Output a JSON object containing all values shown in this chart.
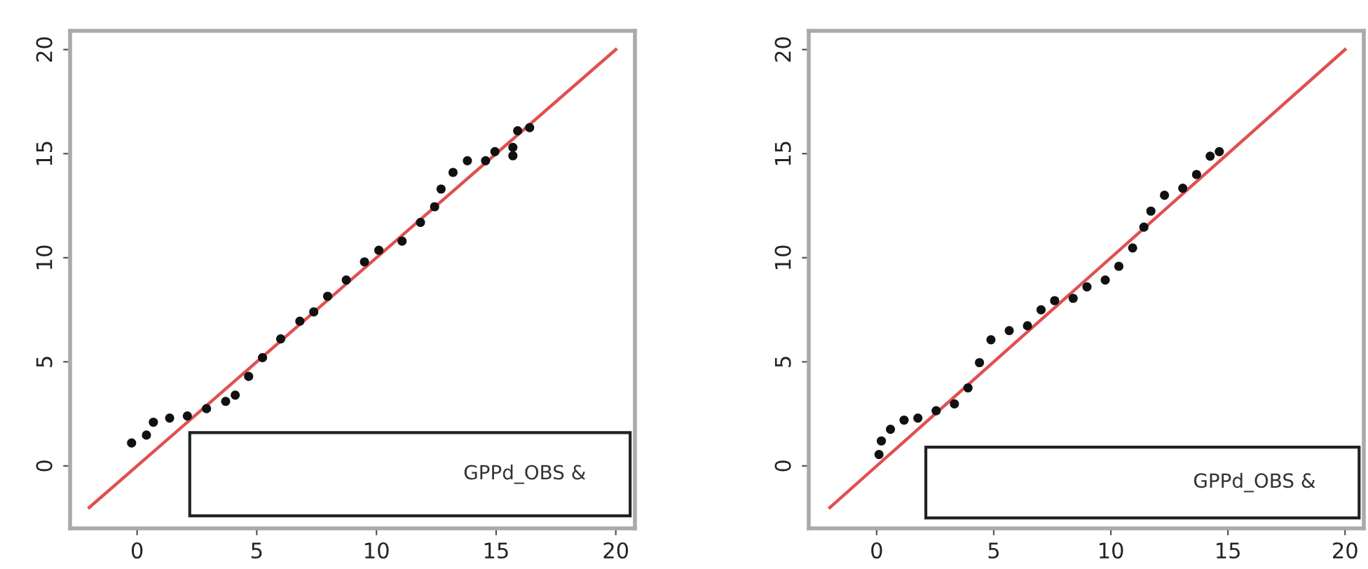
{
  "chart_data": [
    {
      "type": "scatter",
      "xlim": [
        -2.8,
        20.8
      ],
      "ylim": [
        -3,
        20.9
      ],
      "xticks": [
        0,
        5,
        10,
        15,
        20
      ],
      "yticks": [
        0,
        5,
        10,
        15,
        20
      ],
      "grid": false,
      "legend": false,
      "annotations": [
        "GPPd_OBS &"
      ],
      "series": [
        {
          "marker": "circle",
          "color": "#111111",
          "x": [
            -0.23,
            0.39,
            0.68,
            1.36,
            2.1,
            2.9,
            3.7,
            4.1,
            4.66,
            5.24,
            6.0,
            6.8,
            7.38,
            7.96,
            8.74,
            9.5,
            10.1,
            11.07,
            11.84,
            12.43,
            12.7,
            13.2,
            13.8,
            14.56,
            14.95,
            15.7,
            15.7,
            15.9,
            16.4
          ],
          "values": [
            1.1,
            1.48,
            2.1,
            2.3,
            2.4,
            2.75,
            3.1,
            3.4,
            4.3,
            5.2,
            6.1,
            6.95,
            7.4,
            8.15,
            8.93,
            9.8,
            10.36,
            10.8,
            11.7,
            12.45,
            13.3,
            14.1,
            14.66,
            14.66,
            15.1,
            15.3,
            14.9,
            16.1,
            16.25
          ]
        },
        {
          "type": "line",
          "color": "#e05050",
          "x": [
            -2,
            20
          ],
          "values": [
            -2,
            20
          ]
        }
      ]
    },
    {
      "type": "scatter",
      "xlim": [
        -2.9,
        20.8
      ],
      "ylim": [
        -3,
        20.9
      ],
      "xticks": [
        0,
        5,
        10,
        15,
        20
      ],
      "yticks": [
        0,
        5,
        10,
        15,
        20
      ],
      "grid": false,
      "legend": false,
      "annotations": [
        "GPPd_OBS &"
      ],
      "series": [
        {
          "marker": "circle",
          "color": "#111111",
          "x": [
            0.1,
            0.2,
            0.59,
            1.17,
            1.76,
            2.54,
            3.32,
            3.9,
            4.39,
            4.88,
            5.66,
            6.44,
            7.02,
            7.6,
            8.39,
            8.98,
            9.76,
            10.34,
            10.93,
            11.41,
            11.71,
            12.29,
            13.07,
            13.66,
            14.24,
            14.63
          ],
          "values": [
            0.55,
            1.2,
            1.76,
            2.2,
            2.3,
            2.65,
            2.98,
            3.75,
            4.96,
            6.06,
            6.5,
            6.73,
            7.5,
            7.94,
            8.05,
            8.6,
            8.93,
            9.59,
            10.47,
            11.47,
            12.24,
            13.0,
            13.34,
            14.0,
            14.88,
            15.1
          ]
        },
        {
          "type": "line",
          "color": "#e05050",
          "x": [
            -2,
            20
          ],
          "values": [
            -2,
            20
          ]
        }
      ]
    }
  ]
}
